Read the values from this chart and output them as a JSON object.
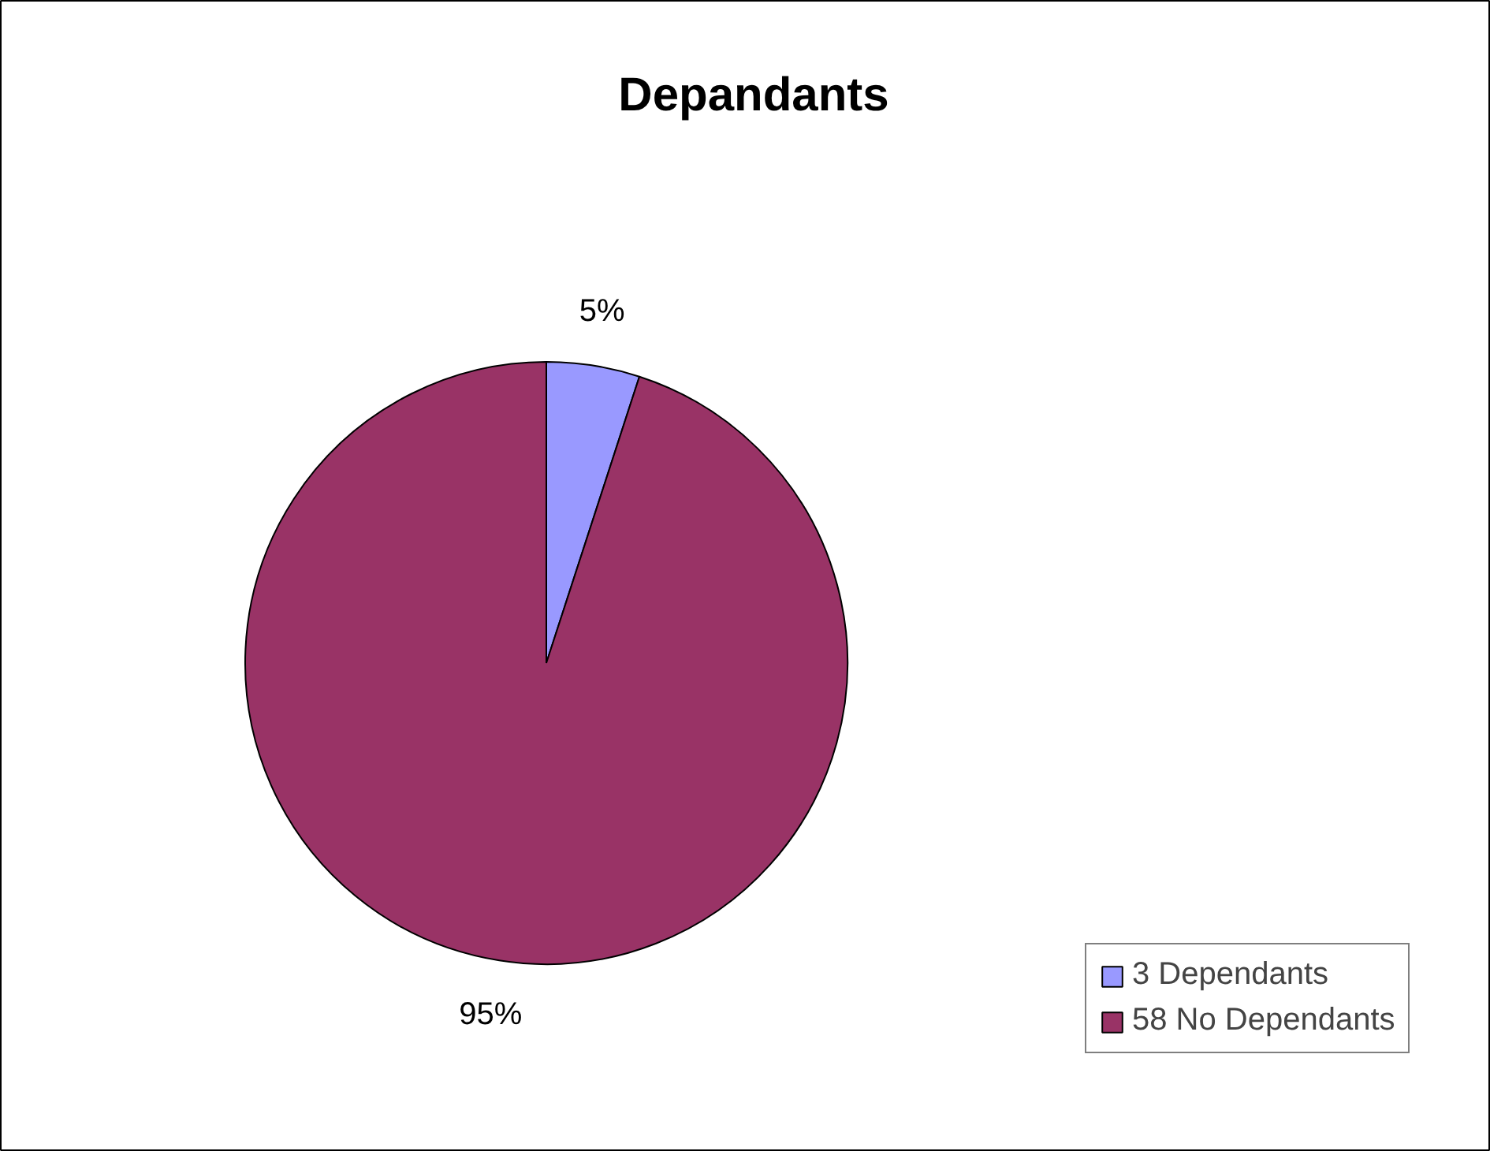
{
  "chart_data": {
    "type": "pie",
    "title": "Depandants",
    "categories": [
      "3 Dependants",
      "58 No Dependants"
    ],
    "values": [
      5,
      95
    ],
    "colors": [
      "#9999ff",
      "#993366"
    ],
    "value_labels": [
      "5%",
      "95%"
    ],
    "legend": "bottom right"
  }
}
